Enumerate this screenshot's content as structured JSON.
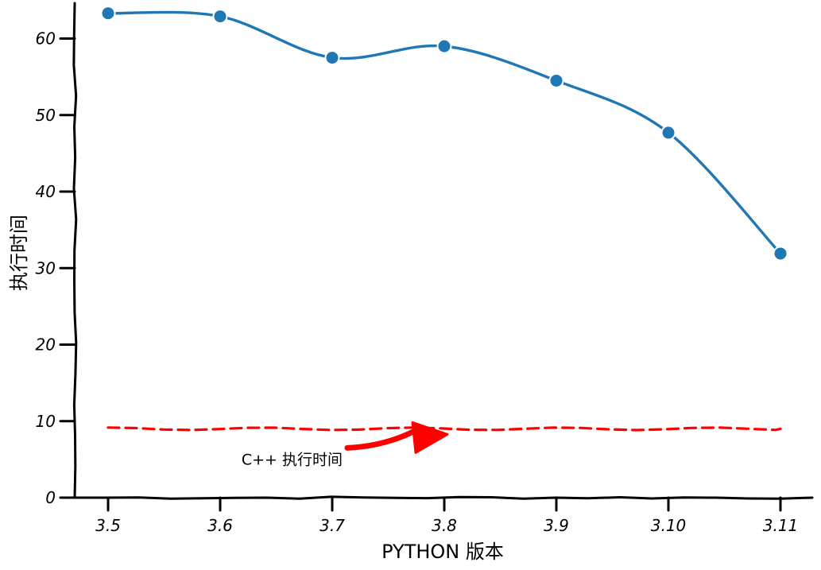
{
  "chart_data": {
    "type": "line",
    "title": "",
    "xlabel": "PYTHON 版本",
    "ylabel": "执行时间",
    "categories": [
      "3.5",
      "3.6",
      "3.7",
      "3.8",
      "3.9",
      "3.10",
      "3.11"
    ],
    "series": [
      {
        "values": [
          63.3,
          62.9,
          57.5,
          59.0,
          54.5,
          47.7,
          31.9
        ],
        "color": "#1f77b4",
        "marker": "circle"
      }
    ],
    "reference_lines": [
      {
        "value": 9,
        "color": "#ff0000",
        "style": "dashed"
      }
    ],
    "annotation": {
      "text": "C++ 执行时间",
      "target_category": "3.8",
      "target_value": 9,
      "arrow_color": "#ff0000"
    },
    "ylim": [
      0,
      64
    ],
    "yticks": [
      0,
      10,
      20,
      30,
      40,
      50,
      60
    ],
    "grid": false,
    "style": "xkcd"
  }
}
